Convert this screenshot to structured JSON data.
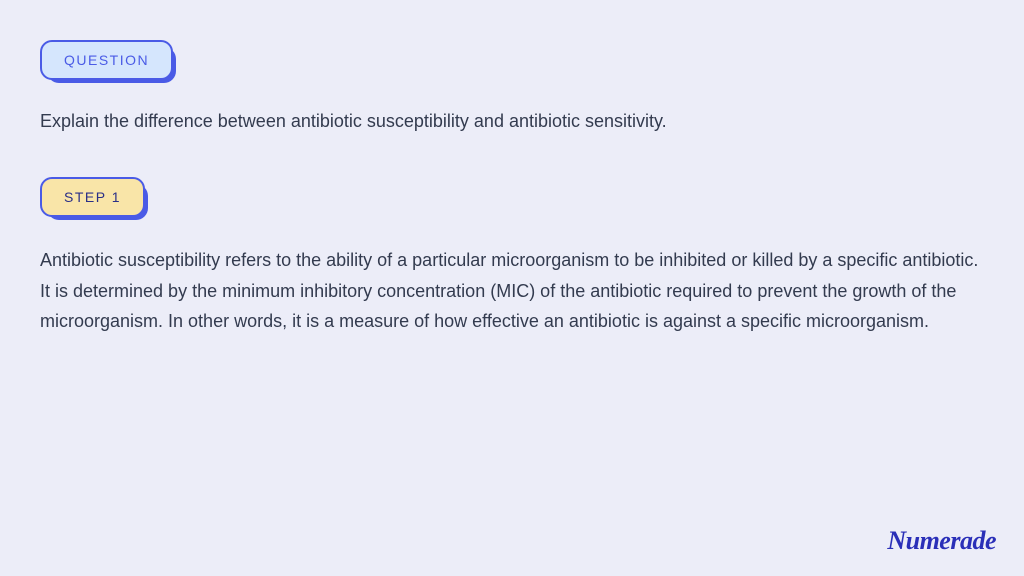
{
  "colors": {
    "page_bg": "#ecedf8",
    "badge_border": "#4a5be6",
    "badge_shadow": "#4a5be6",
    "question_bg": "#d5e6fd",
    "question_text_color": "#4a5be6",
    "step_bg": "#f9e5a8",
    "step_text_color": "#2a2f87",
    "body_text": "#333b4f",
    "logo_color": "#2a2fb8"
  },
  "typography": {
    "badge_fontsize": 14,
    "body_fontsize": 18,
    "logo_fontsize": 26
  },
  "question": {
    "label": "QUESTION",
    "text": "Explain the difference between antibiotic susceptibility and antibiotic sensitivity."
  },
  "step": {
    "label": "STEP 1",
    "text": "Antibiotic susceptibility refers to the ability of a particular microorganism to be inhibited or killed by a specific antibiotic. It is determined by the minimum inhibitory concentration (MIC) of the antibiotic required to prevent the growth of the microorganism. In other words, it is a measure of how effective an antibiotic is against a specific microorganism."
  },
  "logo": "Numerade"
}
